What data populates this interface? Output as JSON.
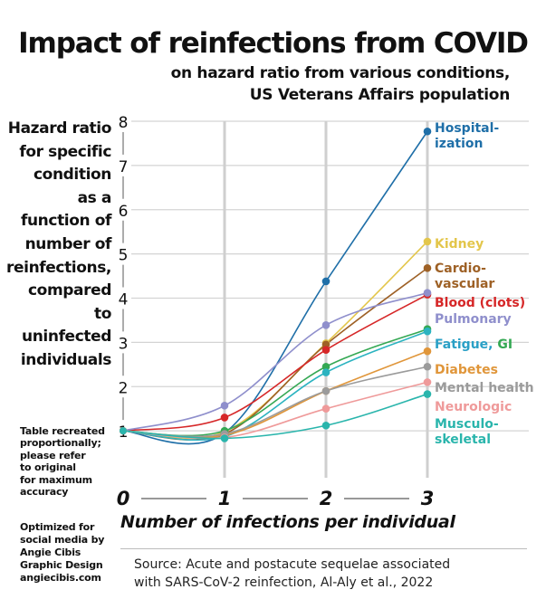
{
  "header": {
    "title": "Impact of reinfections from COVID",
    "subtitle_line1": "on hazard ratio from various conditions,",
    "subtitle_line2": "US Veterans Affairs population"
  },
  "y_description_lines": [
    "Hazard ratio",
    "for specific",
    "condition",
    "as a",
    "function of",
    "number of",
    "reinfections,",
    "compared",
    "to",
    "uninfected",
    "individuals"
  ],
  "note_lines": [
    "Table recreated",
    "proportionally;",
    "please refer",
    "to original",
    "for maximum",
    "accuracy"
  ],
  "credit_lines": [
    "Optimized for",
    "social media by",
    "Angie Cibis",
    "Graphic Design",
    "angiecibis.com"
  ],
  "source_lines": [
    "Source: Acute and postacute sequelae associated",
    "with SARS-CoV-2 reinfection, Al-Aly et al., 2022"
  ],
  "chart_data": {
    "type": "line",
    "xlabel": "Number of infections per individual",
    "x": [
      0,
      1,
      2,
      3
    ],
    "xlim": [
      0,
      3
    ],
    "ylim": [
      0,
      8
    ],
    "yticks": [
      1,
      2,
      3,
      4,
      5,
      6,
      7,
      8
    ],
    "grid": true,
    "series": [
      {
        "name_lines": [
          "Hospital-",
          "ization"
        ],
        "color": "#1f6fa8",
        "values": [
          1.0,
          0.95,
          4.38,
          7.77
        ]
      },
      {
        "name_lines": [
          "Kidney"
        ],
        "color": "#e3c64b",
        "values": [
          1.0,
          0.98,
          2.98,
          5.28
        ]
      },
      {
        "name_lines": [
          "Cardio-",
          "vascular"
        ],
        "color": "#9e6126",
        "values": [
          1.0,
          0.93,
          2.95,
          4.68
        ]
      },
      {
        "name_lines": [
          "Blood (clots)"
        ],
        "color": "#d62728",
        "values": [
          1.0,
          1.3,
          2.83,
          4.08
        ]
      },
      {
        "name_lines": [
          "Pulmonary"
        ],
        "color": "#8f8fcc",
        "values": [
          1.0,
          1.57,
          3.39,
          4.12
        ]
      },
      {
        "name_parts": [
          "Fatigue, ",
          "GI"
        ],
        "colors": [
          "#2aa0c6",
          "#34a853"
        ],
        "color": "#34a853",
        "values": [
          1.0,
          1.0,
          2.45,
          3.3
        ]
      },
      {
        "name_lines": [
          "Fatigue, GI"
        ],
        "legend": false,
        "color": "#2bb3c0",
        "values": [
          1.0,
          0.87,
          2.32,
          3.25
        ]
      },
      {
        "name_lines": [
          "Diabetes"
        ],
        "color": "#e0963a",
        "values": [
          1.0,
          0.9,
          1.9,
          2.8
        ]
      },
      {
        "name_lines": [
          "Mental health"
        ],
        "color": "#9b9b9b",
        "values": [
          1.0,
          0.93,
          1.9,
          2.45
        ]
      },
      {
        "name_lines": [
          "Neurologic"
        ],
        "color": "#ef9a9a",
        "values": [
          1.0,
          0.85,
          1.5,
          2.1
        ]
      },
      {
        "name_lines": [
          "Musculo-",
          "skeletal"
        ],
        "color": "#2ab5ac",
        "values": [
          1.0,
          0.83,
          1.12,
          1.83
        ]
      }
    ]
  }
}
